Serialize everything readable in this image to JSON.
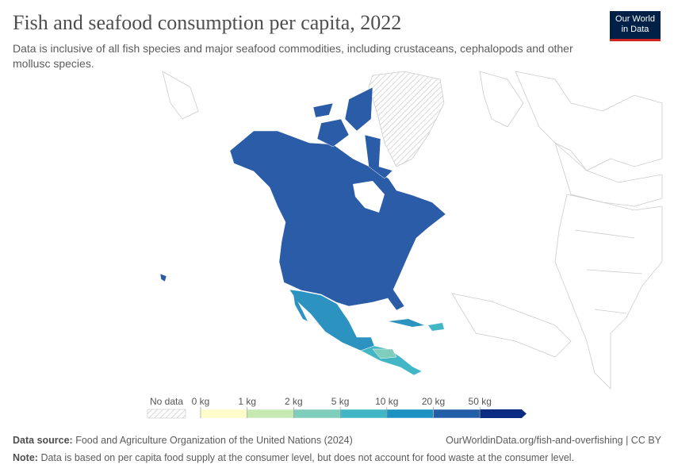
{
  "header": {
    "title": "Fish and seafood consumption per capita, 2022",
    "subtitle": "Data is inclusive of all fish species and major seafood commodities, including crustaceans, cephalopods and other mollusc species.",
    "logo": [
      "Our World",
      "in Data"
    ]
  },
  "legend": {
    "no_data": "No data",
    "bins": [
      "0 kg",
      "1 kg",
      "2 kg",
      "5 kg",
      "10 kg",
      "20 kg",
      "50 kg"
    ],
    "colors": [
      "#fefdc9",
      "#c6e8b3",
      "#7fcdbb",
      "#41b6c4",
      "#1d91c0",
      "#225ea8",
      "#0c2c84"
    ]
  },
  "footer": {
    "source_label": "Data source:",
    "source": "Food and Agriculture Organization of the United Nations (2024)",
    "url": "OurWorldinData.org/fish-and-overfishing | CC BY",
    "note_label": "Note:",
    "note": "Data is based on per capita food supply at the consumer level, but does not account for food waste at the consumer level."
  }
}
